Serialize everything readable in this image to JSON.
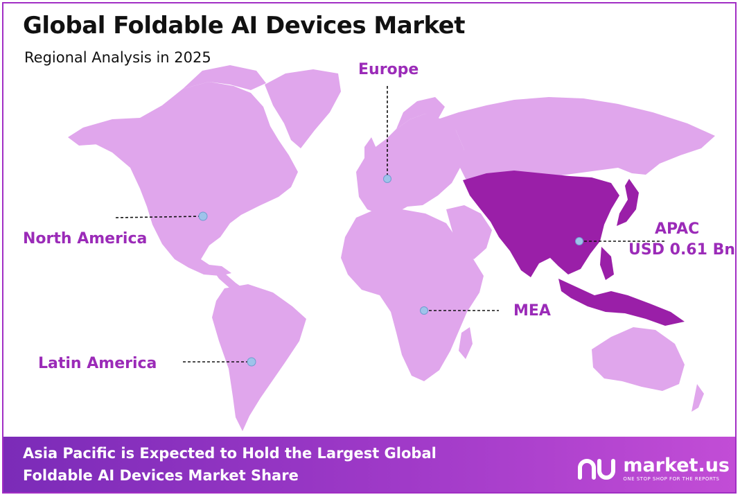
{
  "title": "Global Foldable AI Devices Market",
  "subtitle": "Regional Analysis in 2025",
  "regions": {
    "europe": "Europe",
    "north_america": "North America",
    "latin_america": "Latin America",
    "mea": "MEA",
    "apac": "APAC",
    "apac_value": "USD 0.61 Bn"
  },
  "highlighted_region": "APAC",
  "footer": {
    "line1": "Asia Pacific is Expected to Hold the Largest Global",
    "line2": "Foldable AI Devices Market Share"
  },
  "brand": {
    "name": "market.us",
    "tagline": "ONE STOP SHOP FOR THE REPORTS"
  },
  "colors": {
    "land": "#e0a6ec",
    "highlight": "#9a1fa8",
    "accent": "#9b2bb8",
    "marker": "#9ec3ea"
  },
  "icons": [
    "market-us-logo-icon"
  ]
}
